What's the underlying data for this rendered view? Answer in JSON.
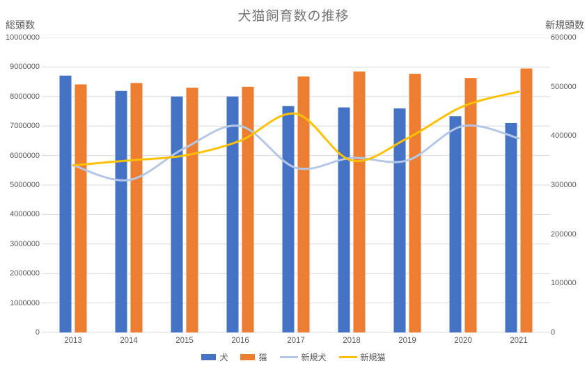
{
  "title": "犬猫飼育数の推移",
  "left_axis": {
    "label": "総頭数",
    "min": 0,
    "max": 10000000,
    "step": 1000000,
    "tick_labels_top_to_bottom": [
      "10000000",
      "9000000",
      "8000000",
      "7000000",
      "6000000",
      "5000000",
      "4000000",
      "3000000",
      "2000000",
      "1000000",
      "0"
    ]
  },
  "right_axis": {
    "label": "新規頭数",
    "min": 0,
    "max": 600000,
    "step": 100000,
    "tick_labels_top_to_bottom": [
      "600000",
      "500000",
      "400000",
      "300000",
      "200000",
      "100000",
      "0"
    ]
  },
  "colors": {
    "dog_bar": "#4472C4",
    "cat_bar": "#ED7D31",
    "new_dog_line": "#B4C7E7",
    "new_cat_line": "#FFC000",
    "gridline": "#D9D9D9",
    "axis_text": "#595959",
    "title_text": "#767676"
  },
  "chart_data": {
    "type": "combo-bar-line",
    "grid": true,
    "legend_position": "bottom",
    "categories": [
      "2013",
      "2014",
      "2015",
      "2016",
      "2017",
      "2018",
      "2019",
      "2020",
      "2021"
    ],
    "series": [
      {
        "name": "犬",
        "key": "dog",
        "type": "bar",
        "axis": "left",
        "color": "#4472C4",
        "values": [
          8710000,
          8190000,
          8000000,
          8000000,
          7680000,
          7630000,
          7600000,
          7330000,
          7100000
        ]
      },
      {
        "name": "猫",
        "key": "cat",
        "type": "bar",
        "axis": "left",
        "color": "#ED7D31",
        "values": [
          8410000,
          8460000,
          8300000,
          8330000,
          8680000,
          8850000,
          8770000,
          8630000,
          8950000
        ]
      },
      {
        "name": "新規犬",
        "key": "new-dog",
        "type": "line",
        "axis": "right",
        "color": "#B4C7E7",
        "values": [
          340000,
          310000,
          375000,
          420000,
          335000,
          355000,
          350000,
          420000,
          395000
        ]
      },
      {
        "name": "新規猫",
        "key": "new-cat",
        "type": "line",
        "axis": "right",
        "color": "#FFC000",
        "values": [
          340000,
          350000,
          360000,
          390000,
          445000,
          350000,
          395000,
          460000,
          490000
        ]
      }
    ],
    "left_axis_range": [
      0,
      10000000
    ],
    "right_axis_range": [
      0,
      600000
    ]
  }
}
